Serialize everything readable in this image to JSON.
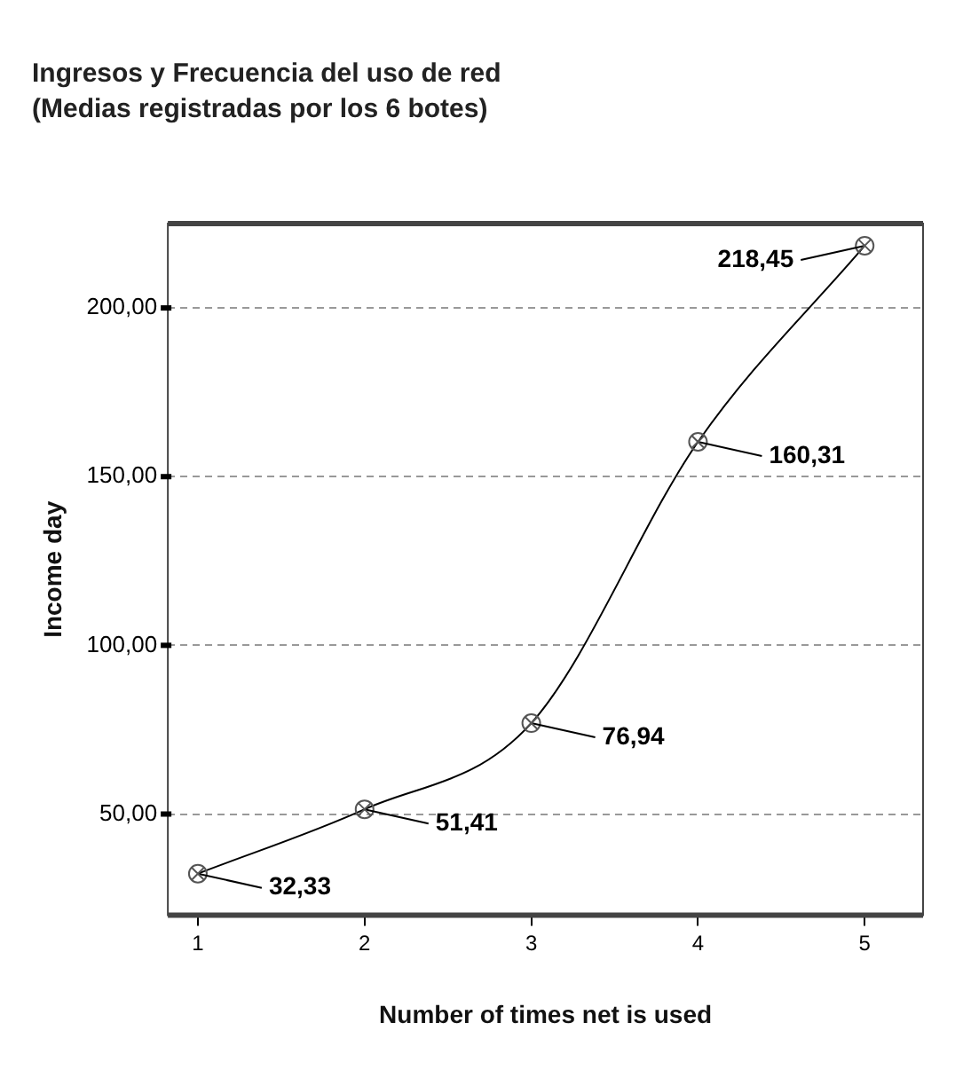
{
  "chart_data": {
    "type": "line",
    "title": "Ingresos y Frecuencia del uso de red",
    "subtitle": "(Medias registradas por los 6 botes)",
    "xlabel": "Number of times net is used",
    "ylabel": "Income day",
    "x": [
      1,
      2,
      3,
      4,
      5
    ],
    "series": [
      {
        "color": "#000000",
        "values": [
          32.33,
          51.41,
          76.94,
          160.31,
          218.45
        ],
        "value_labels": [
          "32,33",
          "51,41",
          "76,94",
          "160,31",
          "218,45"
        ]
      }
    ],
    "xlim": [
      0.82,
      5.35
    ],
    "xticks": [
      1,
      2,
      3,
      4,
      5
    ],
    "ylim": [
      20,
      225
    ],
    "yticks": [
      {
        "value": 50,
        "label": "50,00"
      },
      {
        "value": 100,
        "label": "100,00"
      },
      {
        "value": 150,
        "label": "150,00"
      },
      {
        "value": 200,
        "label": "200,00"
      }
    ],
    "grid": "y",
    "marker": "circle",
    "line_style": "solid",
    "legend": false
  }
}
